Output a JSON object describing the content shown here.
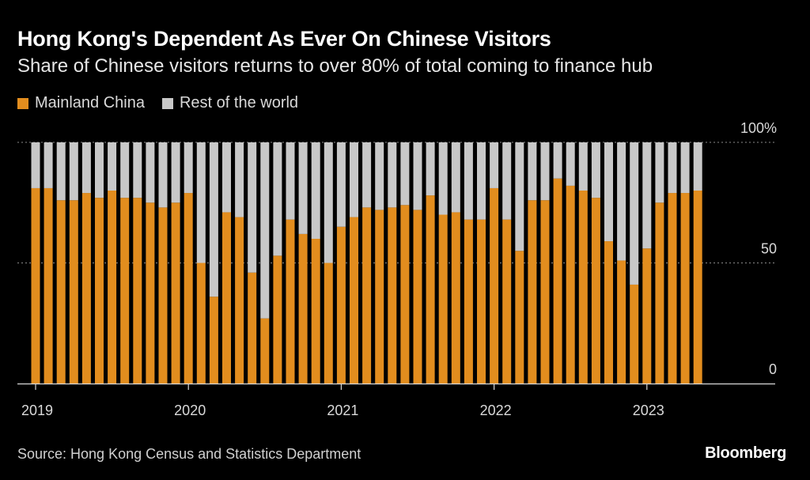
{
  "header": {
    "title": "Hong Kong's Dependent As Ever On Chinese Visitors",
    "subtitle": "Share of Chinese visitors returns to over 80% of total coming to finance hub"
  },
  "legend": [
    {
      "label": "Mainland China",
      "color": "#e28d1e"
    },
    {
      "label": "Rest of the world",
      "color": "#c8c8c8"
    }
  ],
  "footer": {
    "source": "Source: Hong Kong Census and Statistics Department",
    "brand": "Bloomberg"
  },
  "chart_data": {
    "type": "bar",
    "stacked": true,
    "title": "Hong Kong's Dependent As Ever On Chinese Visitors",
    "subtitle": "Share of Chinese visitors returns to over 80% of total coming to finance hub",
    "xlabel": "",
    "ylabel": "",
    "ylim": [
      0,
      100
    ],
    "y_ticks": [
      0,
      50,
      100
    ],
    "y_tick_labels": [
      "0",
      "50",
      "100%"
    ],
    "x_tick_labels": [
      {
        "label": "2019",
        "index": 0
      },
      {
        "label": "2020",
        "index": 12
      },
      {
        "label": "2021",
        "index": 24
      },
      {
        "label": "2022",
        "index": 36
      },
      {
        "label": "2023",
        "index": 48
      }
    ],
    "categories": [
      "2019-01",
      "2019-02",
      "2019-03",
      "2019-04",
      "2019-05",
      "2019-06",
      "2019-07",
      "2019-08",
      "2019-09",
      "2019-10",
      "2019-11",
      "2019-12",
      "2020-01",
      "2020-02",
      "2020-03",
      "2020-04",
      "2020-05",
      "2020-06",
      "2020-07",
      "2020-08",
      "2020-09",
      "2020-10",
      "2020-11",
      "2020-12",
      "2021-01",
      "2021-02",
      "2021-03",
      "2021-04",
      "2021-05",
      "2021-06",
      "2021-07",
      "2021-08",
      "2021-09",
      "2021-10",
      "2021-11",
      "2021-12",
      "2022-01",
      "2022-02",
      "2022-03",
      "2022-04",
      "2022-05",
      "2022-06",
      "2022-07",
      "2022-08",
      "2022-09",
      "2022-10",
      "2022-11",
      "2022-12",
      "2023-01",
      "2023-02",
      "2023-03",
      "2023-04",
      "2023-05"
    ],
    "series": [
      {
        "name": "Mainland China",
        "color": "#e28d1e",
        "values": [
          81,
          81,
          76,
          76,
          79,
          77,
          80,
          77,
          77,
          75,
          73,
          75,
          79,
          50,
          36,
          71,
          69,
          46,
          27,
          53,
          68,
          62,
          60,
          50,
          65,
          69,
          73,
          72,
          73,
          74,
          72,
          78,
          70,
          71,
          68,
          68,
          81,
          68,
          55,
          76,
          76,
          85,
          82,
          80,
          77,
          59,
          51,
          41,
          56,
          75,
          79,
          79,
          80
        ]
      },
      {
        "name": "Rest of the world",
        "color": "#c8c8c8",
        "values": [
          19,
          19,
          24,
          24,
          21,
          23,
          20,
          23,
          23,
          25,
          27,
          25,
          21,
          50,
          64,
          29,
          31,
          54,
          73,
          47,
          32,
          38,
          40,
          50,
          35,
          31,
          27,
          28,
          27,
          26,
          28,
          22,
          30,
          29,
          32,
          32,
          19,
          32,
          45,
          24,
          24,
          15,
          18,
          20,
          23,
          41,
          49,
          59,
          44,
          25,
          21,
          21,
          20
        ]
      }
    ]
  }
}
